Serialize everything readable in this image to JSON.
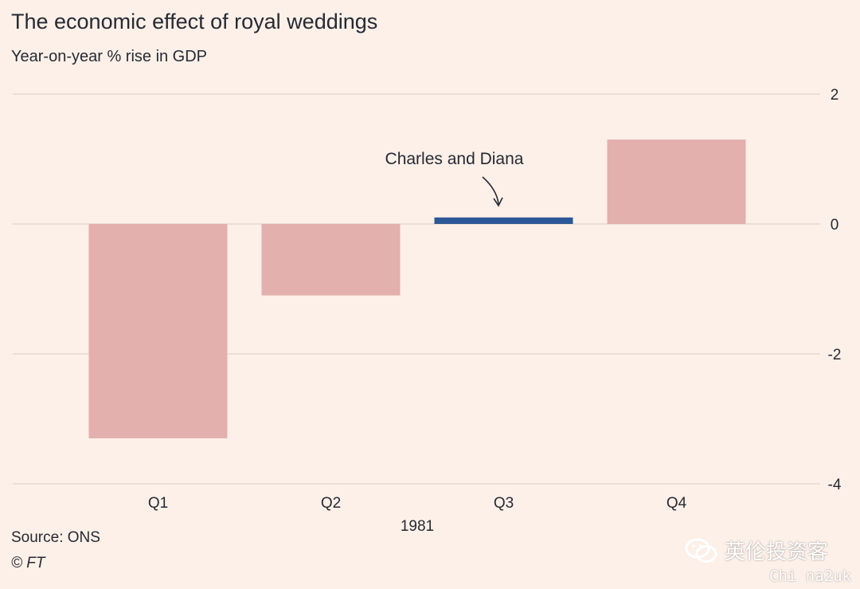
{
  "title": "The economic effect of royal weddings",
  "subtitle": "Year-on-year % rise in GDP",
  "source": "Source: ONS",
  "credit": "© FT",
  "watermark": {
    "brand": "英伦投资客",
    "site": "Chi na2uk",
    "icon": "wechat-icon"
  },
  "colors": {
    "background": "#fcf0e8",
    "bar": "#e3b0ae",
    "highlight": "#2d5897",
    "grid": "#e3d9d0",
    "text": "#262a33"
  },
  "chart_data": {
    "type": "bar",
    "title": "The economic effect of royal weddings",
    "subtitle": "Year-on-year % rise in GDP",
    "categories": [
      "Q1",
      "Q2",
      "Q3",
      "Q4"
    ],
    "values": [
      -3.3,
      -1.1,
      0.1,
      1.3
    ],
    "highlight_index": 2,
    "xlabel": "1981",
    "ylim": [
      -4,
      2
    ],
    "yticks": [
      2,
      0,
      -2,
      -4
    ],
    "ytick_labels": [
      "2",
      "0",
      "-2",
      "-4"
    ],
    "y_axis_side": "right",
    "grid": true,
    "annotation": {
      "text": "Charles and Diana",
      "category": "Q3"
    }
  }
}
